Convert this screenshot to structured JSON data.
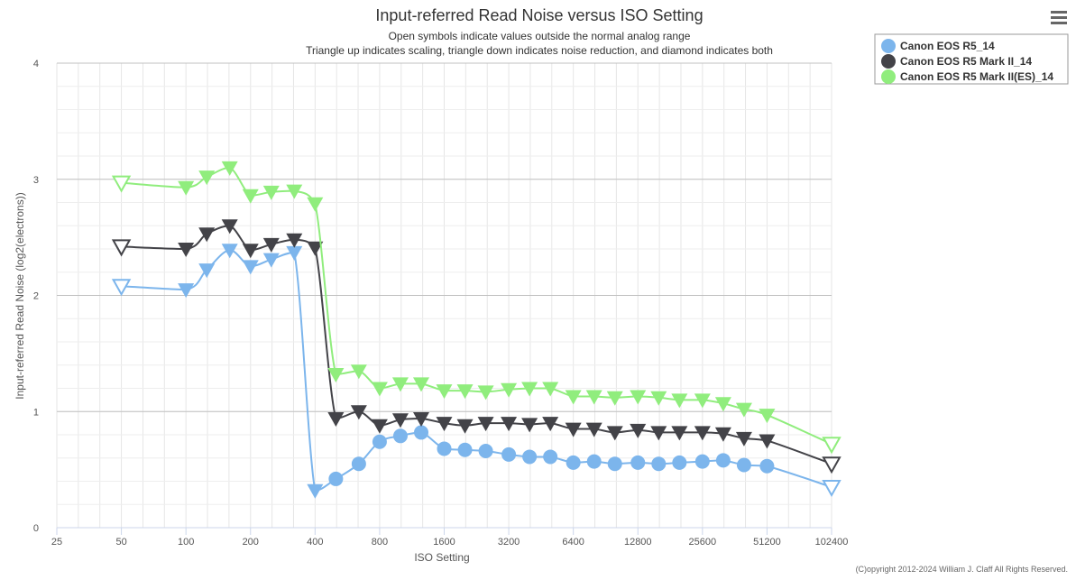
{
  "chart_data": {
    "type": "line",
    "title": "Input-referred Read Noise versus ISO Setting",
    "subtitles": [
      "Open symbols indicate values outside the normal analog range",
      "Triangle up indicates scaling, triangle down indicates noise reduction, and diamond indicates both"
    ],
    "xlabel": "ISO Setting",
    "ylabel": "Input-referred Read Noise (log2(electrons))",
    "x_scale": "log2",
    "xlim": [
      25,
      102400
    ],
    "ylim": [
      0,
      4
    ],
    "x_ticks": [
      25,
      50,
      100,
      200,
      400,
      800,
      1600,
      3200,
      6400,
      12800,
      25600,
      51200,
      102400
    ],
    "y_ticks": [
      0,
      1,
      2,
      3,
      4
    ],
    "grid": true,
    "legend_position": "top-right",
    "credit": "(C)opyright 2012-2024 William J. Claff All Rights Reserved.",
    "series": [
      {
        "name": "Canon EOS R5_14",
        "color": "#7cb5ec",
        "points": [
          {
            "x": 50,
            "y": 2.08,
            "marker": "triangle-down",
            "open": true
          },
          {
            "x": 100,
            "y": 2.05,
            "marker": "triangle-down",
            "open": false
          },
          {
            "x": 125,
            "y": 2.22,
            "marker": "triangle-down",
            "open": false
          },
          {
            "x": 160,
            "y": 2.39,
            "marker": "triangle-down",
            "open": false
          },
          {
            "x": 200,
            "y": 2.25,
            "marker": "triangle-down",
            "open": false
          },
          {
            "x": 250,
            "y": 2.31,
            "marker": "triangle-down",
            "open": false
          },
          {
            "x": 320,
            "y": 2.37,
            "marker": "triangle-down",
            "open": false
          },
          {
            "x": 400,
            "y": 0.32,
            "marker": "triangle-down",
            "open": false
          },
          {
            "x": 500,
            "y": 0.42,
            "marker": "circle",
            "open": false
          },
          {
            "x": 640,
            "y": 0.55,
            "marker": "circle",
            "open": false
          },
          {
            "x": 800,
            "y": 0.74,
            "marker": "circle",
            "open": false
          },
          {
            "x": 1000,
            "y": 0.79,
            "marker": "circle",
            "open": false
          },
          {
            "x": 1250,
            "y": 0.82,
            "marker": "circle",
            "open": false
          },
          {
            "x": 1600,
            "y": 0.68,
            "marker": "circle",
            "open": false
          },
          {
            "x": 2000,
            "y": 0.67,
            "marker": "circle",
            "open": false
          },
          {
            "x": 2500,
            "y": 0.66,
            "marker": "circle",
            "open": false
          },
          {
            "x": 3200,
            "y": 0.63,
            "marker": "circle",
            "open": false
          },
          {
            "x": 4000,
            "y": 0.61,
            "marker": "circle",
            "open": false
          },
          {
            "x": 5000,
            "y": 0.61,
            "marker": "circle",
            "open": false
          },
          {
            "x": 6400,
            "y": 0.56,
            "marker": "circle",
            "open": false
          },
          {
            "x": 8000,
            "y": 0.57,
            "marker": "circle",
            "open": false
          },
          {
            "x": 10000,
            "y": 0.55,
            "marker": "circle",
            "open": false
          },
          {
            "x": 12800,
            "y": 0.56,
            "marker": "circle",
            "open": false
          },
          {
            "x": 16000,
            "y": 0.55,
            "marker": "circle",
            "open": false
          },
          {
            "x": 20000,
            "y": 0.56,
            "marker": "circle",
            "open": false
          },
          {
            "x": 25600,
            "y": 0.57,
            "marker": "circle",
            "open": false
          },
          {
            "x": 32000,
            "y": 0.58,
            "marker": "circle",
            "open": false
          },
          {
            "x": 40000,
            "y": 0.54,
            "marker": "circle",
            "open": false
          },
          {
            "x": 51200,
            "y": 0.53,
            "marker": "circle",
            "open": false
          },
          {
            "x": 102400,
            "y": 0.35,
            "marker": "triangle-down",
            "open": true
          }
        ]
      },
      {
        "name": "Canon EOS R5 Mark II_14",
        "color": "#434348",
        "points": [
          {
            "x": 50,
            "y": 2.42,
            "marker": "triangle-down",
            "open": true
          },
          {
            "x": 100,
            "y": 2.4,
            "marker": "triangle-down",
            "open": false
          },
          {
            "x": 125,
            "y": 2.53,
            "marker": "triangle-down",
            "open": false
          },
          {
            "x": 160,
            "y": 2.6,
            "marker": "triangle-down",
            "open": false
          },
          {
            "x": 200,
            "y": 2.39,
            "marker": "triangle-down",
            "open": false
          },
          {
            "x": 250,
            "y": 2.44,
            "marker": "triangle-down",
            "open": false
          },
          {
            "x": 320,
            "y": 2.48,
            "marker": "triangle-down",
            "open": false
          },
          {
            "x": 400,
            "y": 2.41,
            "marker": "triangle-down",
            "open": false
          },
          {
            "x": 500,
            "y": 0.94,
            "marker": "triangle-down",
            "open": false
          },
          {
            "x": 640,
            "y": 1.0,
            "marker": "triangle-down",
            "open": false
          },
          {
            "x": 800,
            "y": 0.88,
            "marker": "triangle-down",
            "open": false
          },
          {
            "x": 1000,
            "y": 0.93,
            "marker": "triangle-down",
            "open": false
          },
          {
            "x": 1250,
            "y": 0.94,
            "marker": "triangle-down",
            "open": false
          },
          {
            "x": 1600,
            "y": 0.9,
            "marker": "triangle-down",
            "open": false
          },
          {
            "x": 2000,
            "y": 0.88,
            "marker": "triangle-down",
            "open": false
          },
          {
            "x": 2500,
            "y": 0.9,
            "marker": "triangle-down",
            "open": false
          },
          {
            "x": 3200,
            "y": 0.9,
            "marker": "triangle-down",
            "open": false
          },
          {
            "x": 4000,
            "y": 0.89,
            "marker": "triangle-down",
            "open": false
          },
          {
            "x": 5000,
            "y": 0.9,
            "marker": "triangle-down",
            "open": false
          },
          {
            "x": 6400,
            "y": 0.85,
            "marker": "triangle-down",
            "open": false
          },
          {
            "x": 8000,
            "y": 0.85,
            "marker": "triangle-down",
            "open": false
          },
          {
            "x": 10000,
            "y": 0.82,
            "marker": "triangle-down",
            "open": false
          },
          {
            "x": 12800,
            "y": 0.84,
            "marker": "triangle-down",
            "open": false
          },
          {
            "x": 16000,
            "y": 0.82,
            "marker": "triangle-down",
            "open": false
          },
          {
            "x": 20000,
            "y": 0.82,
            "marker": "triangle-down",
            "open": false
          },
          {
            "x": 25600,
            "y": 0.82,
            "marker": "triangle-down",
            "open": false
          },
          {
            "x": 32000,
            "y": 0.81,
            "marker": "triangle-down",
            "open": false
          },
          {
            "x": 40000,
            "y": 0.77,
            "marker": "triangle-down",
            "open": false
          },
          {
            "x": 51200,
            "y": 0.75,
            "marker": "triangle-down",
            "open": false
          },
          {
            "x": 102400,
            "y": 0.55,
            "marker": "triangle-down",
            "open": true
          }
        ]
      },
      {
        "name": "Canon EOS R5 Mark II(ES)_14",
        "color": "#90ed7d",
        "points": [
          {
            "x": 50,
            "y": 2.97,
            "marker": "triangle-down",
            "open": true
          },
          {
            "x": 100,
            "y": 2.93,
            "marker": "triangle-down",
            "open": false
          },
          {
            "x": 125,
            "y": 3.02,
            "marker": "triangle-down",
            "open": false
          },
          {
            "x": 160,
            "y": 3.1,
            "marker": "triangle-down",
            "open": false
          },
          {
            "x": 200,
            "y": 2.86,
            "marker": "triangle-down",
            "open": false
          },
          {
            "x": 250,
            "y": 2.89,
            "marker": "triangle-down",
            "open": false
          },
          {
            "x": 320,
            "y": 2.9,
            "marker": "triangle-down",
            "open": false
          },
          {
            "x": 400,
            "y": 2.79,
            "marker": "triangle-down",
            "open": false
          },
          {
            "x": 500,
            "y": 1.32,
            "marker": "triangle-down",
            "open": false
          },
          {
            "x": 640,
            "y": 1.35,
            "marker": "triangle-down",
            "open": false
          },
          {
            "x": 800,
            "y": 1.2,
            "marker": "triangle-down",
            "open": false
          },
          {
            "x": 1000,
            "y": 1.24,
            "marker": "triangle-down",
            "open": false
          },
          {
            "x": 1250,
            "y": 1.24,
            "marker": "triangle-down",
            "open": false
          },
          {
            "x": 1600,
            "y": 1.18,
            "marker": "triangle-down",
            "open": false
          },
          {
            "x": 2000,
            "y": 1.18,
            "marker": "triangle-down",
            "open": false
          },
          {
            "x": 2500,
            "y": 1.17,
            "marker": "triangle-down",
            "open": false
          },
          {
            "x": 3200,
            "y": 1.19,
            "marker": "triangle-down",
            "open": false
          },
          {
            "x": 4000,
            "y": 1.2,
            "marker": "triangle-down",
            "open": false
          },
          {
            "x": 5000,
            "y": 1.2,
            "marker": "triangle-down",
            "open": false
          },
          {
            "x": 6400,
            "y": 1.13,
            "marker": "triangle-down",
            "open": false
          },
          {
            "x": 8000,
            "y": 1.13,
            "marker": "triangle-down",
            "open": false
          },
          {
            "x": 10000,
            "y": 1.12,
            "marker": "triangle-down",
            "open": false
          },
          {
            "x": 12800,
            "y": 1.13,
            "marker": "triangle-down",
            "open": false
          },
          {
            "x": 16000,
            "y": 1.12,
            "marker": "triangle-down",
            "open": false
          },
          {
            "x": 20000,
            "y": 1.1,
            "marker": "triangle-down",
            "open": false
          },
          {
            "x": 25600,
            "y": 1.1,
            "marker": "triangle-down",
            "open": false
          },
          {
            "x": 32000,
            "y": 1.07,
            "marker": "triangle-down",
            "open": false
          },
          {
            "x": 40000,
            "y": 1.02,
            "marker": "triangle-down",
            "open": false
          },
          {
            "x": 51200,
            "y": 0.97,
            "marker": "triangle-down",
            "open": false
          },
          {
            "x": 102400,
            "y": 0.72,
            "marker": "triangle-down",
            "open": true
          }
        ]
      }
    ]
  },
  "menu_icon": "hamburger-menu-icon"
}
